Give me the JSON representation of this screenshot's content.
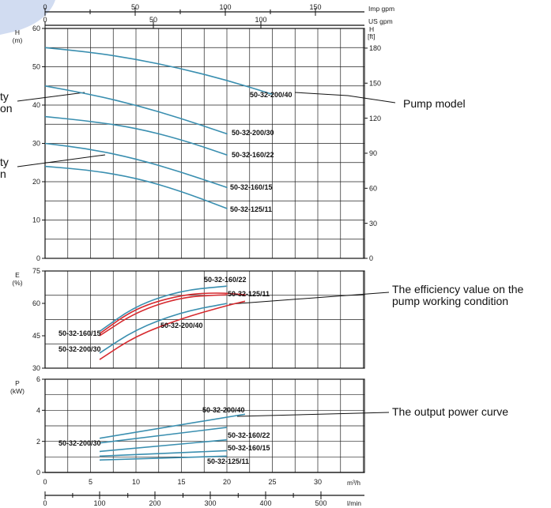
{
  "chart_data": {
    "type": "line",
    "top_axes": {
      "imp_gpm": {
        "label": "Imp gpm",
        "ticks": [
          "0",
          "50",
          "100",
          "150"
        ]
      },
      "us_gpm": {
        "label": "US gpm",
        "ticks": [
          "0",
          "50",
          "100"
        ]
      }
    },
    "bottom_axes": {
      "m3h": {
        "label": "m³/h",
        "ticks": [
          "0",
          "5",
          "10",
          "15",
          "20",
          "25",
          "30"
        ]
      },
      "lmin": {
        "label": "l/min",
        "ticks": [
          "0",
          "100",
          "200",
          "300",
          "400",
          "500"
        ]
      }
    },
    "panels": [
      {
        "id": "head",
        "ylabel": "H",
        "yunit": "(m)",
        "ylim": [
          0,
          60
        ],
        "yticks": [
          "0",
          "10",
          "20",
          "30",
          "40",
          "50",
          "60"
        ],
        "right_axis": {
          "label": "H",
          "unit": "[ft]",
          "ticks": [
            "0",
            "30",
            "60",
            "90",
            "120",
            "150",
            "180"
          ]
        },
        "series": [
          {
            "name": "50-32-200/40",
            "x": [
              0,
              5,
              10,
              15,
              20,
              25
            ],
            "y": [
              55,
              53.8,
              52,
              49.5,
              46.5,
              42.8
            ],
            "color": "#3a8fb0"
          },
          {
            "name": "50-32-200/30",
            "x": [
              0,
              5,
              10,
              15,
              20
            ],
            "y": [
              45,
              42.8,
              40,
              36.5,
              32.5
            ],
            "color": "#3a8fb0"
          },
          {
            "name": "50-32-160/22",
            "x": [
              0,
              5,
              10,
              15,
              20
            ],
            "y": [
              37,
              35.8,
              34,
              31,
              27
            ],
            "color": "#3a8fb0"
          },
          {
            "name": "50-32-160/15",
            "x": [
              0,
              5,
              10,
              15,
              20
            ],
            "y": [
              30,
              28.5,
              26,
              22.5,
              18.5
            ],
            "color": "#3a8fb0"
          },
          {
            "name": "50-32-125/11",
            "x": [
              0,
              5,
              10,
              15,
              20
            ],
            "y": [
              24,
              23,
              21,
              17.5,
              13
            ],
            "color": "#3a8fb0"
          }
        ]
      },
      {
        "id": "efficiency",
        "ylabel": "E",
        "yunit": "(%)",
        "ylim": [
          30,
          75
        ],
        "yticks": [
          "30",
          "45",
          "60",
          "75"
        ],
        "series": [
          {
            "name": "50-32-160/22",
            "x": [
              6,
              10,
              15,
              20
            ],
            "y": [
              47,
              59,
              66,
              68
            ],
            "color": "#3a8fb0"
          },
          {
            "name": "50-32-125/11",
            "x": [
              6,
              10,
              15,
              19,
              22
            ],
            "y": [
              46,
              58,
              64,
              65,
              64
            ],
            "color": "#d62a2f"
          },
          {
            "name": "50-32-160/15",
            "x": [
              6,
              10,
              15,
              20
            ],
            "y": [
              45,
              56,
              63,
              64
            ],
            "color": "#d62a2f"
          },
          {
            "name": "50-32-200/30",
            "x": [
              6,
              10,
              15,
              20
            ],
            "y": [
              37,
              48,
              56,
              60
            ],
            "color": "#3a8fb0"
          },
          {
            "name": "50-32-200/40",
            "x": [
              6,
              10,
              15,
              20,
              22
            ],
            "y": [
              34,
              45,
              53,
              59,
              61
            ],
            "color": "#d62a2f"
          }
        ]
      },
      {
        "id": "power",
        "ylabel": "P",
        "yunit": "(kW)",
        "ylim": [
          0,
          6
        ],
        "yticks": [
          "0",
          "2",
          "4",
          "6"
        ],
        "series": [
          {
            "name": "50-32-200/40",
            "x": [
              6,
              22
            ],
            "y": [
              2.2,
              3.75
            ],
            "color": "#3a8fb0"
          },
          {
            "name": "50-32-200/30",
            "x": [
              6,
              20
            ],
            "y": [
              1.9,
              2.9
            ],
            "color": "#3a8fb0"
          },
          {
            "name": "50-32-160/22",
            "x": [
              6,
              20
            ],
            "y": [
              1.35,
              2.1
            ],
            "color": "#3a8fb0"
          },
          {
            "name": "50-32-160/15",
            "x": [
              6,
              20
            ],
            "y": [
              1.05,
              1.4
            ],
            "color": "#3a8fb0"
          },
          {
            "name": "50-32-125/11",
            "x": [
              6,
              20
            ],
            "y": [
              0.8,
              1.05
            ],
            "color": "#3a8fb0"
          }
        ]
      }
    ],
    "annotations": [
      {
        "text": "Pump model"
      },
      {
        "text": "The efficiency value on the"
      },
      {
        "text": "pump working condition"
      },
      {
        "text": "The output power curve"
      },
      {
        "text": "ty"
      },
      {
        "text": "on"
      },
      {
        "text": "ty"
      },
      {
        "text": "n"
      }
    ]
  }
}
